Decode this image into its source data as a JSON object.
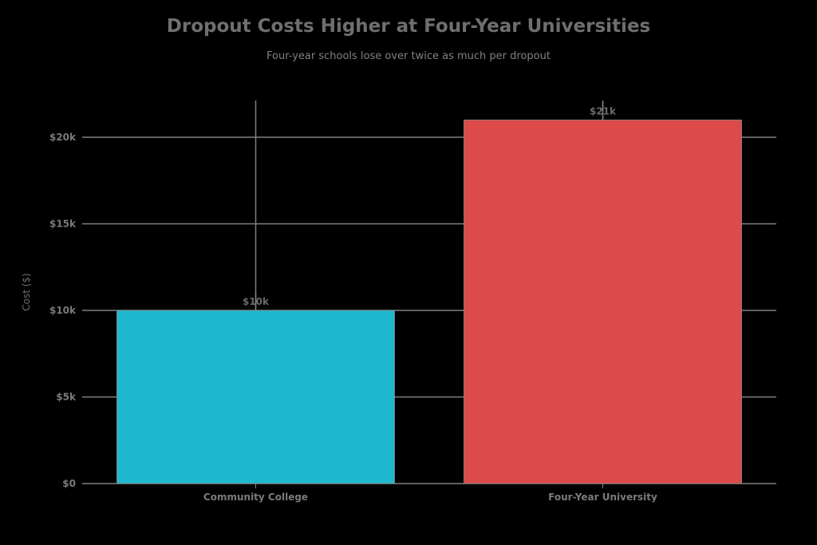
{
  "chart_data": {
    "type": "bar",
    "title": "Dropout Costs Higher at Four-Year Universities",
    "subtitle": "Four-year schools lose over twice as much per dropout",
    "xlabel": "",
    "ylabel": "Cost ($)",
    "categories": [
      "Community College",
      "Four-Year University"
    ],
    "values": [
      10000,
      21000
    ],
    "value_labels": [
      "$10k",
      "$21k"
    ],
    "colors": [
      "#20b8cf",
      "#dc4a4a"
    ],
    "ylim": [
      0,
      22000
    ],
    "yticks": [
      0,
      5000,
      10000,
      15000,
      20000
    ],
    "ytick_labels": [
      "$0",
      "$5k",
      "$10k",
      "$15k",
      "$20k"
    ],
    "grid": true,
    "legend": null
  },
  "style": {
    "background": "#000000",
    "grid_color": "#808080",
    "text_color": "#7a7a7a"
  }
}
